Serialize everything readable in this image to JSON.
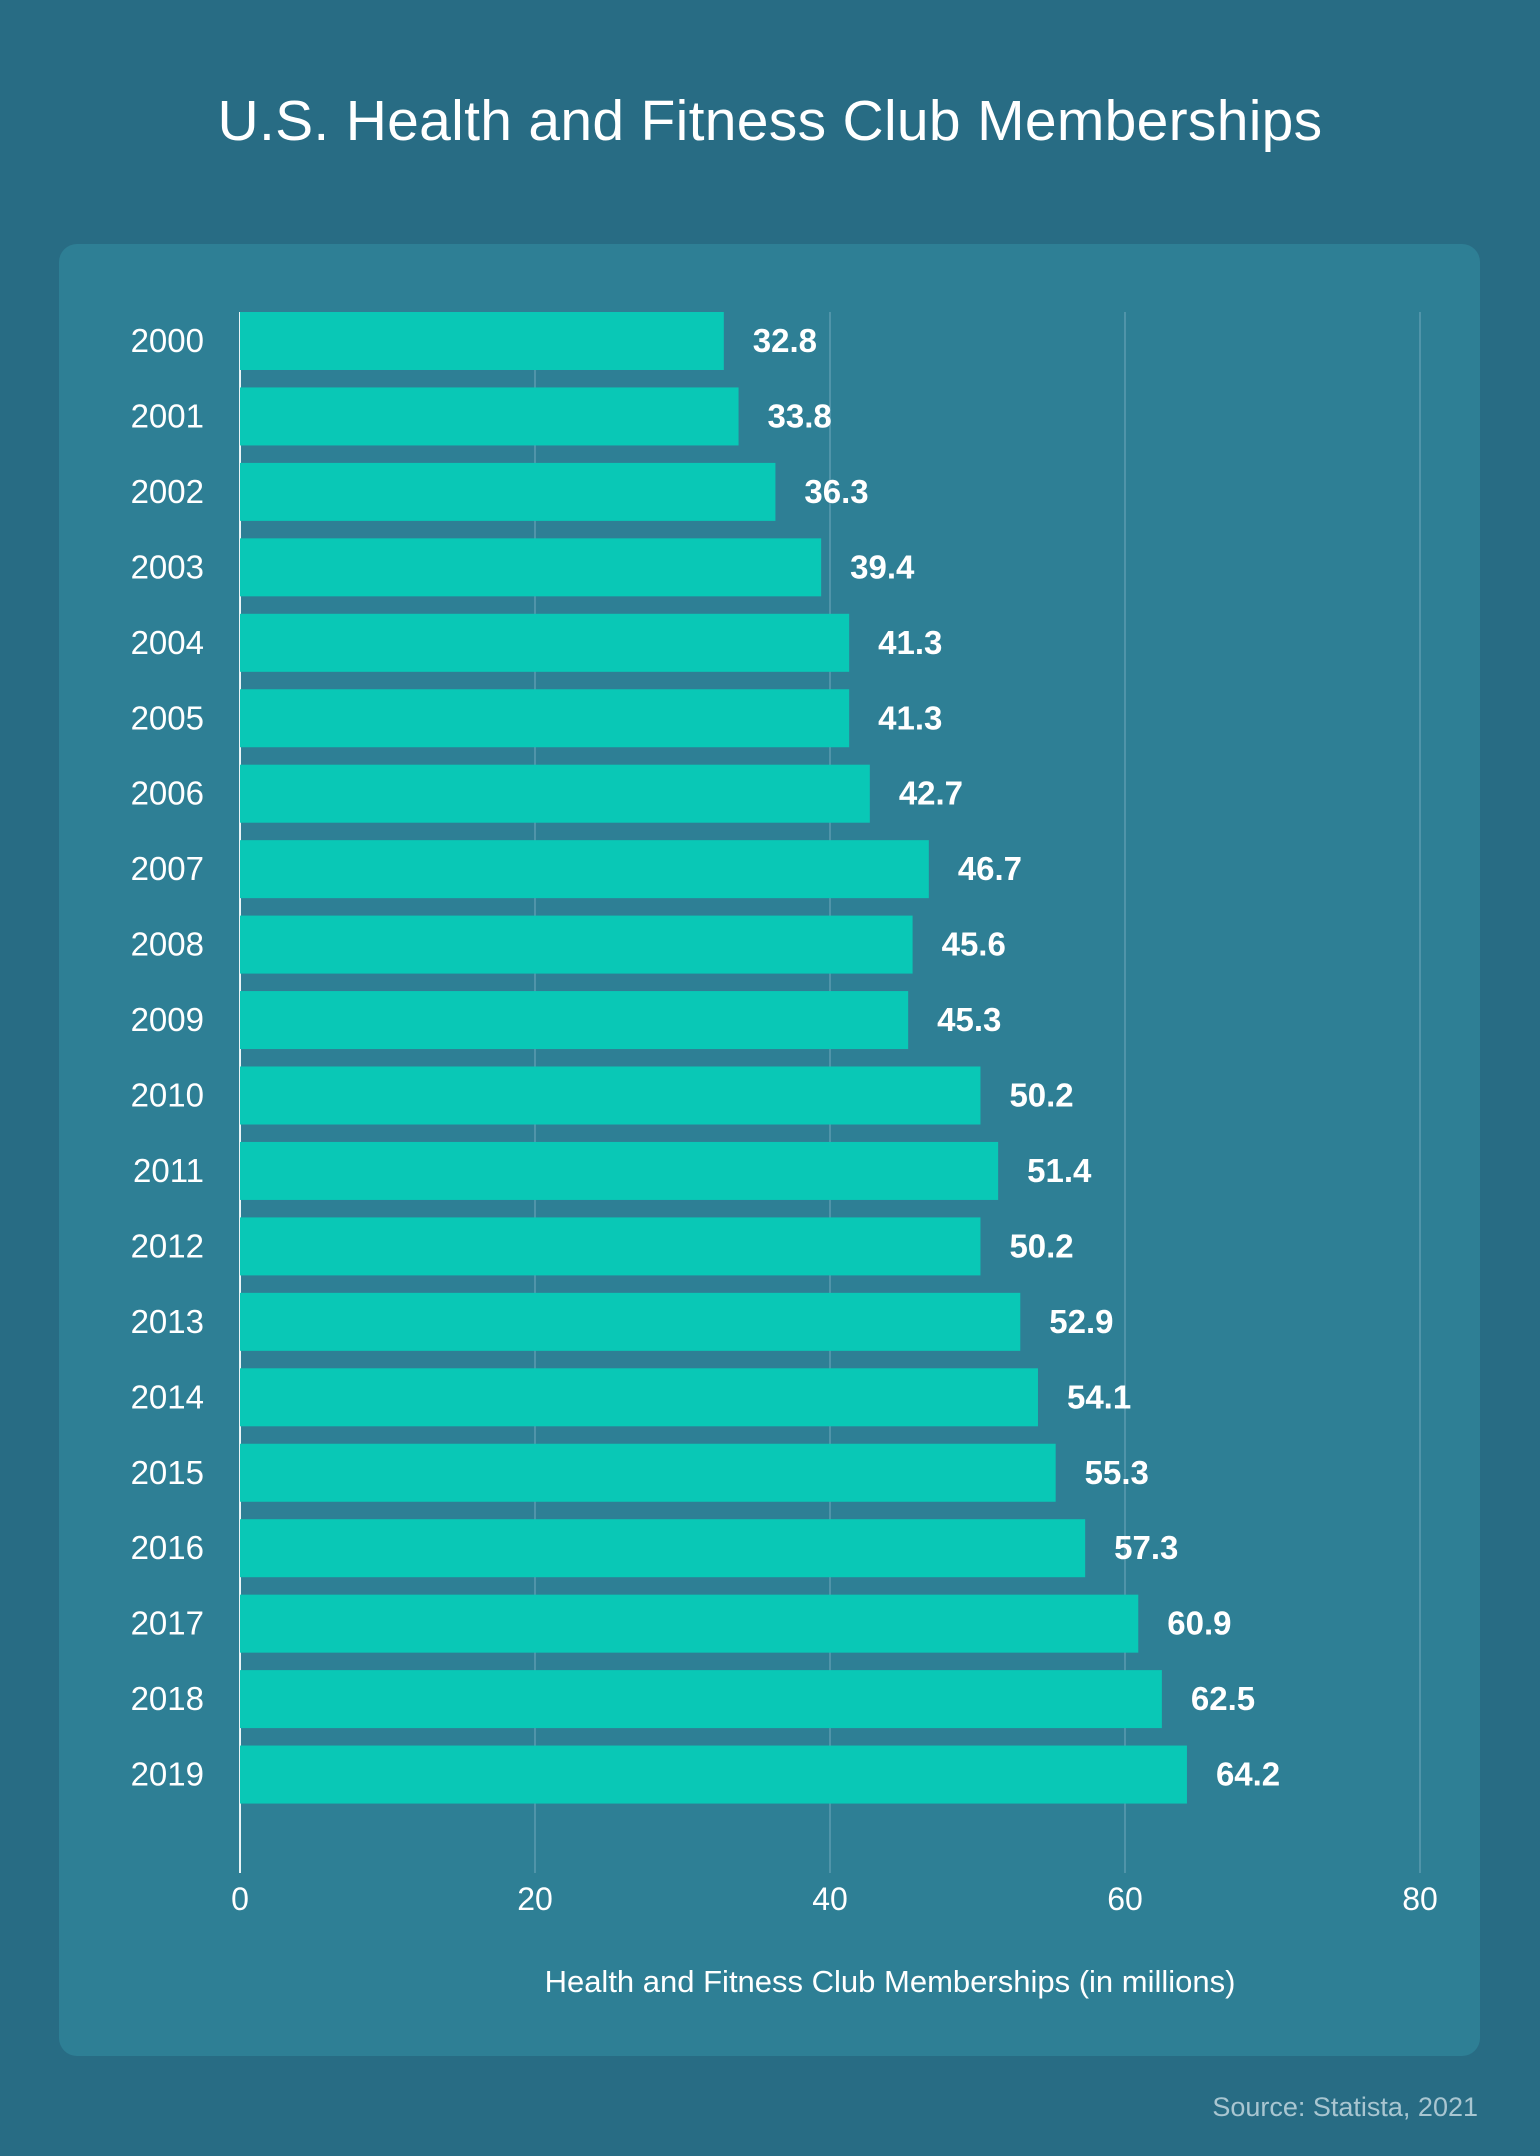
{
  "chart_data": {
    "type": "bar",
    "orientation": "horizontal",
    "title": "U.S. Health and Fitness Club Memberships",
    "categories": [
      "2000",
      "2001",
      "2002",
      "2003",
      "2004",
      "2005",
      "2006",
      "2007",
      "2008",
      "2009",
      "2010",
      "2011",
      "2012",
      "2013",
      "2014",
      "2015",
      "2016",
      "2017",
      "2018",
      "2019"
    ],
    "values": [
      32.8,
      33.8,
      36.3,
      39.4,
      41.3,
      41.3,
      42.7,
      46.7,
      45.6,
      45.3,
      50.2,
      51.4,
      50.2,
      52.9,
      54.1,
      55.3,
      57.3,
      60.9,
      62.5,
      64.2
    ],
    "value_labels": [
      "32.8",
      "33.8",
      "36.3",
      "39.4",
      "41.3",
      "41.3",
      "42.7",
      "46.7",
      "45.6",
      "45.3",
      "50.2",
      "51.4",
      "50.2",
      "52.9",
      "54.1",
      "55.3",
      "57.3",
      "60.9",
      "62.5",
      "64.2"
    ],
    "xlabel": "Health and Fitness Club Memberships (in millions)",
    "ylabel": "",
    "xlim": [
      0,
      80
    ],
    "xticks": [
      0,
      20,
      40,
      60,
      80
    ],
    "xtick_labels": [
      "0",
      "20",
      "40",
      "60",
      "80"
    ],
    "grid": true,
    "legend": "none"
  },
  "source": "Source: Statista, 2021",
  "colors": {
    "background": "#286c84",
    "panel": "#2e7f95",
    "bar": "#09c8b6",
    "text": "#ffffff",
    "gridline": "#5b9cb0",
    "source_text": "#a9c6d1"
  }
}
